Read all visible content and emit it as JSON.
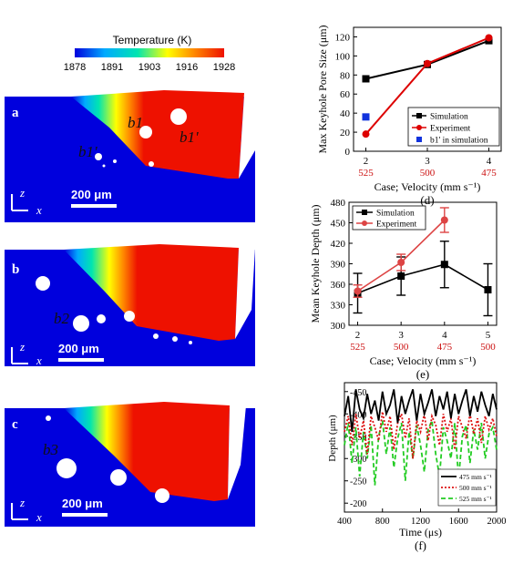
{
  "colorbar": {
    "title": "Temperature (K)",
    "ticks": [
      "1878",
      "1891",
      "1903",
      "1916",
      "1928"
    ],
    "colors": [
      "#0000dd",
      "#00aaff",
      "#00e5b0",
      "#ffff00",
      "#ff8800",
      "#ee1100"
    ]
  },
  "simulations": [
    {
      "panel": "a",
      "annotations": [
        "b1",
        "b1'",
        "b1'"
      ],
      "axis_z": "z",
      "axis_x": "x",
      "scale_bar": "200 μm"
    },
    {
      "panel": "b",
      "annotations": [
        "b2"
      ],
      "axis_z": "z",
      "axis_x": "x",
      "scale_bar": "200 μm"
    },
    {
      "panel": "c",
      "annotations": [
        "b3"
      ],
      "axis_z": "z",
      "axis_x": "x",
      "scale_bar": "200 μm"
    }
  ],
  "chart_data": [
    {
      "panel": "(d)",
      "type": "line",
      "ylabel": "Max Keyhole  Pore Size (μm)",
      "xlabel": "Case; Velocity (mm s⁻¹)",
      "x": [
        2,
        3,
        4
      ],
      "x_ticks": [
        "2",
        "3",
        "4"
      ],
      "x_subticks": [
        "525",
        "500",
        "475"
      ],
      "y_ticks": [
        "0",
        "20",
        "40",
        "60",
        "80",
        "100",
        "120"
      ],
      "ylim": [
        0,
        130
      ],
      "xlim": [
        1.8,
        4.2
      ],
      "series": [
        {
          "name": "Simulation",
          "color": "#000000",
          "marker": "square",
          "values": [
            76,
            91,
            116
          ]
        },
        {
          "name": "Experiment",
          "color": "#dd0000",
          "marker": "circle",
          "values": [
            18,
            92,
            119
          ]
        },
        {
          "name": "b1' in simulation",
          "color": "#1133dd",
          "marker": "square",
          "points": [
            [
              2,
              36
            ]
          ]
        }
      ],
      "legend_position": "lower-right"
    },
    {
      "panel": "(e)",
      "type": "line",
      "ylabel": "Mean Keyhole Depth (μm)",
      "xlabel": "Case; Velocity (mm s⁻¹)",
      "x_ticks": [
        "2",
        "3",
        "4",
        "5"
      ],
      "x_subticks": [
        "525",
        "500",
        "475",
        "500"
      ],
      "y_ticks": [
        "300",
        "330",
        "360",
        "390",
        "420",
        "450",
        "480"
      ],
      "ylim": [
        300,
        480
      ],
      "xlim": [
        1.8,
        5.2
      ],
      "series": [
        {
          "name": "Simulation",
          "color": "#000000",
          "marker": "square",
          "x": [
            2,
            3,
            4,
            5
          ],
          "values": [
            347,
            372,
            389,
            352
          ],
          "error": [
            29,
            28,
            34,
            38
          ]
        },
        {
          "name": "Experiment",
          "color": "#dd4444",
          "marker": "circle",
          "x": [
            2,
            3,
            4
          ],
          "values": [
            350,
            392,
            454
          ],
          "error": [
            9,
            12,
            18
          ]
        }
      ],
      "legend_position": "top-left"
    },
    {
      "panel": "(f)",
      "type": "line",
      "ylabel": "Depth (μm)",
      "xlabel": "Time (μs)",
      "x_ticks": [
        "400",
        "800",
        "1200",
        "1600",
        "2000"
      ],
      "y_ticks": [
        "-450",
        "-400",
        "-350",
        "-300",
        "-250",
        "-200"
      ],
      "xlim": [
        400,
        2000
      ],
      "ylim": [
        -470,
        -180
      ],
      "series": [
        {
          "name": "475 mm s⁻¹",
          "color": "#000000",
          "style": "solid",
          "t": [
            400,
            440,
            480,
            520,
            560,
            600,
            640,
            680,
            720,
            760,
            800,
            840,
            880,
            920,
            960,
            1000,
            1040,
            1080,
            1120,
            1160,
            1200,
            1240,
            1280,
            1320,
            1360,
            1400,
            1440,
            1480,
            1520,
            1560,
            1600,
            1640,
            1680,
            1720,
            1760,
            1800,
            1840,
            1880,
            1920,
            1960,
            2000
          ],
          "values": [
            -395,
            -440,
            -360,
            -455,
            -410,
            -390,
            -445,
            -400,
            -430,
            -385,
            -450,
            -400,
            -420,
            -455,
            -380,
            -440,
            -400,
            -430,
            -455,
            -385,
            -445,
            -400,
            -425,
            -455,
            -395,
            -440,
            -410,
            -450,
            -390,
            -445,
            -400,
            -430,
            -455,
            -395,
            -440,
            -405,
            -450,
            -420,
            -395,
            -445,
            -410
          ]
        },
        {
          "name": "500 mm s⁻¹",
          "color": "#dd1111",
          "style": "dotted",
          "t": [
            400,
            440,
            480,
            520,
            560,
            600,
            640,
            680,
            720,
            760,
            800,
            840,
            880,
            920,
            960,
            1000,
            1040,
            1080,
            1120,
            1160,
            1200,
            1240,
            1280,
            1320,
            1360,
            1400,
            1440,
            1480,
            1520,
            1560,
            1600,
            1640,
            1680,
            1720,
            1760,
            1800,
            1840,
            1880,
            1920,
            1960,
            2000
          ],
          "values": [
            -360,
            -395,
            -330,
            -400,
            -345,
            -385,
            -310,
            -395,
            -370,
            -340,
            -405,
            -360,
            -395,
            -320,
            -380,
            -400,
            -345,
            -390,
            -300,
            -385,
            -360,
            -400,
            -340,
            -395,
            -375,
            -330,
            -400,
            -360,
            -390,
            -320,
            -395,
            -370,
            -345,
            -400,
            -355,
            -390,
            -335,
            -395,
            -365,
            -390,
            -350
          ]
        },
        {
          "name": "525 mm s⁻¹",
          "color": "#22cc22",
          "style": "dashed",
          "t": [
            400,
            440,
            480,
            520,
            560,
            600,
            640,
            680,
            720,
            760,
            800,
            840,
            880,
            920,
            960,
            1000,
            1040,
            1080,
            1120,
            1160,
            1200,
            1240,
            1280,
            1320,
            1360,
            1400,
            1440,
            1480,
            1520,
            1560,
            1600,
            1640,
            1680,
            1720,
            1760,
            1800,
            1840,
            1880,
            1920,
            1960,
            2000
          ],
          "values": [
            -330,
            -380,
            -290,
            -370,
            -260,
            -360,
            -300,
            -375,
            -240,
            -350,
            -385,
            -310,
            -370,
            -280,
            -345,
            -380,
            -250,
            -360,
            -300,
            -375,
            -330,
            -270,
            -365,
            -385,
            -310,
            -260,
            -370,
            -340,
            -300,
            -380,
            -255,
            -350,
            -375,
            -290,
            -365,
            -320,
            -380,
            -300,
            -355,
            -370,
            -320
          ]
        }
      ],
      "legend_position": "bottom-right"
    }
  ]
}
